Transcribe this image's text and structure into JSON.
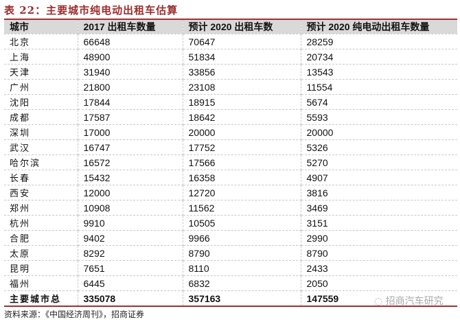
{
  "title": "表 22：主要城市纯电动出租车估算",
  "headers": [
    "城市",
    "2017 出租车数量",
    "预计 2020 出租车数",
    "预计 2020 纯电动出租车数量"
  ],
  "rows": [
    [
      "北京",
      "66648",
      "70647",
      "28259"
    ],
    [
      "上海",
      "48900",
      "51834",
      "20734"
    ],
    [
      "天津",
      "31940",
      "33856",
      "13543"
    ],
    [
      "广州",
      "21800",
      "23108",
      "11554"
    ],
    [
      "沈阳",
      "17844",
      "18915",
      "5674"
    ],
    [
      "成都",
      "17587",
      "18642",
      "5593"
    ],
    [
      "深圳",
      "17000",
      "20000",
      "20000"
    ],
    [
      "武汉",
      "16747",
      "17752",
      "5326"
    ],
    [
      "哈尔滨",
      "16572",
      "17566",
      "5270"
    ],
    [
      "长春",
      "15432",
      "16358",
      "4907"
    ],
    [
      "西安",
      "12000",
      "12720",
      "3816"
    ],
    [
      "郑州",
      "10908",
      "11562",
      "3469"
    ],
    [
      "杭州",
      "9910",
      "10505",
      "3151"
    ],
    [
      "合肥",
      "9402",
      "9966",
      "2990"
    ],
    [
      "太原",
      "8292",
      "8790",
      "8790"
    ],
    [
      "昆明",
      "7651",
      "8110",
      "2433"
    ],
    [
      "福州",
      "6445",
      "6832",
      "2050"
    ]
  ],
  "total": [
    "主要城市总",
    "335078",
    "357163",
    "147559"
  ],
  "watermark": "招商汽车研究",
  "source": "资料来源：《中国经济周刊》，招商证券",
  "colors": {
    "accent": "#a03030",
    "header_bg": "#d9d9d9"
  }
}
